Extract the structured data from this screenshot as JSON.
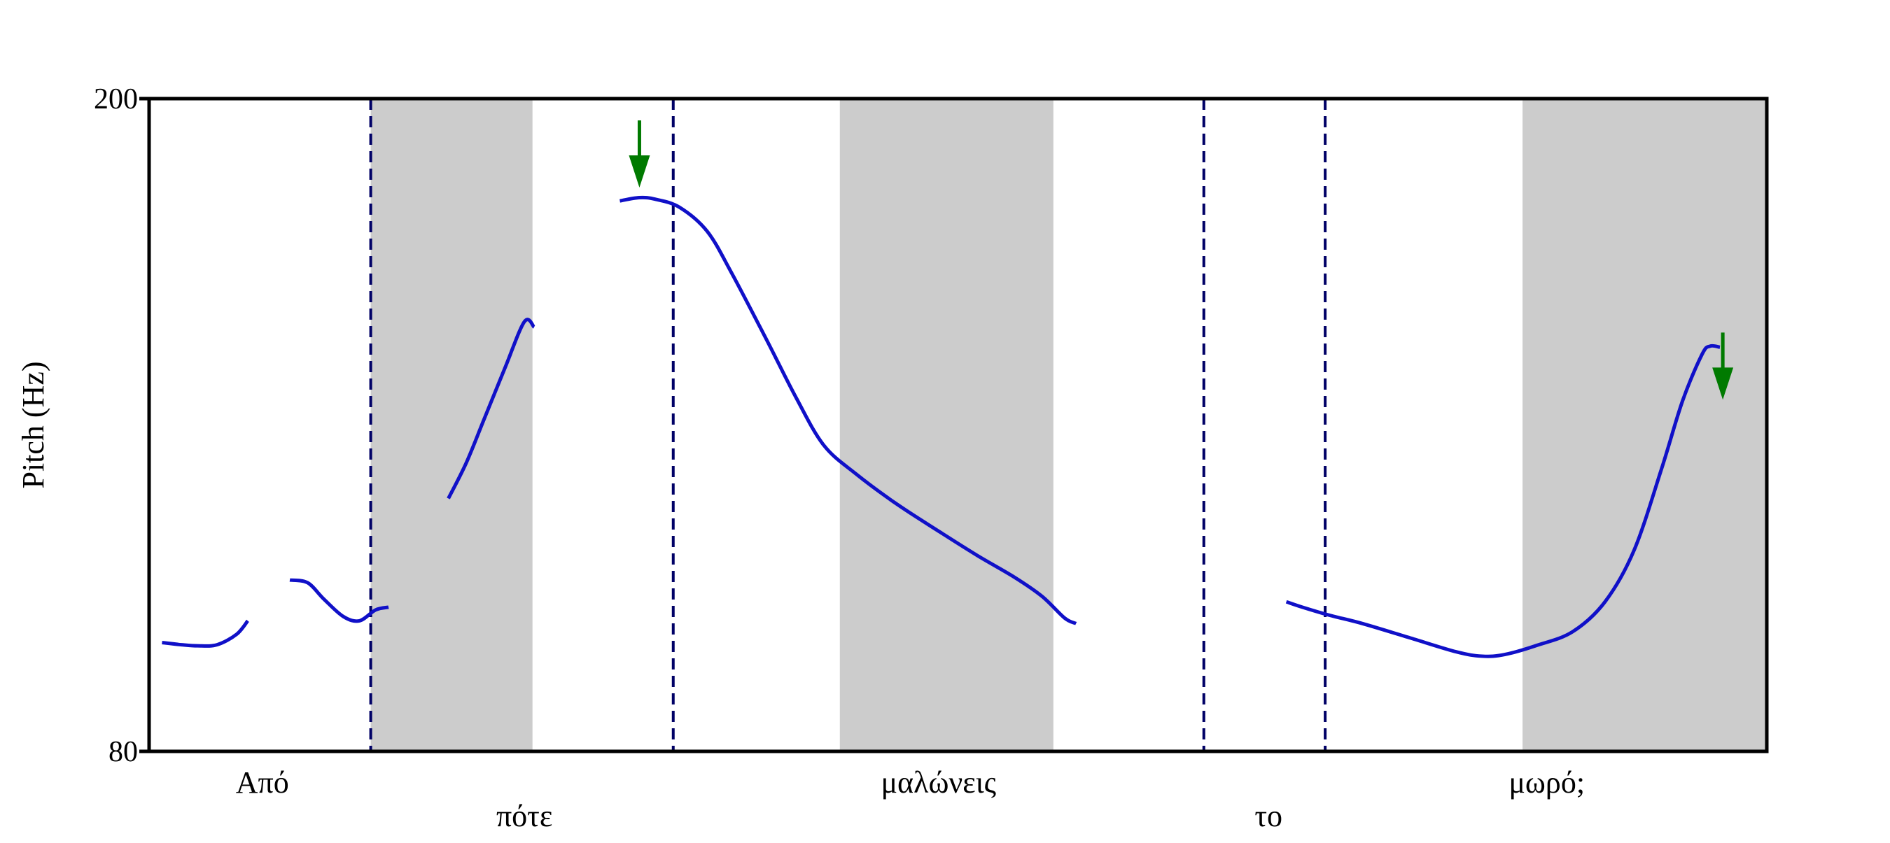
{
  "chart_data": {
    "type": "line",
    "ylabel": "Pitch (Hz)",
    "ylim": [
      80,
      200
    ],
    "yticks": [
      "200",
      "80"
    ],
    "grid": false,
    "legend": "none",
    "x_range": [
      0,
      1
    ],
    "stressed_syllable_shading": [
      {
        "x0": 0.137,
        "x1": 0.237
      },
      {
        "x0": 0.427,
        "x1": 0.559
      },
      {
        "x0": 0.849,
        "x1": 1.0
      }
    ],
    "word_boundaries": [
      0.137,
      0.324,
      0.652,
      0.727
    ],
    "words": [
      {
        "text": "Από",
        "x": 0.07,
        "row": 1
      },
      {
        "text": "πότε",
        "x": 0.232,
        "row": 2
      },
      {
        "text": "μαλώνεις",
        "x": 0.488,
        "row": 1
      },
      {
        "text": "το",
        "x": 0.692,
        "row": 2
      },
      {
        "text": "μωρό;",
        "x": 0.864,
        "row": 1
      }
    ],
    "arrows": [
      {
        "x": 0.3031,
        "y": 196
      },
      {
        "x": 0.9728,
        "y": 157
      }
    ],
    "colors": {
      "contour": "#1010c8",
      "shade": "#cccccc",
      "boundary": "#000066",
      "arrow": "#007a00",
      "axis": "#000000"
    },
    "series": [
      {
        "points": [
          [
            0.008,
            100
          ],
          [
            0.02,
            99.6
          ],
          [
            0.03,
            99.4
          ],
          [
            0.042,
            99.6
          ],
          [
            0.054,
            101.5
          ],
          [
            0.061,
            104
          ]
        ]
      },
      {
        "points": [
          [
            0.087,
            111.5
          ],
          [
            0.098,
            111
          ],
          [
            0.108,
            108
          ],
          [
            0.12,
            104.8
          ],
          [
            0.13,
            104
          ],
          [
            0.14,
            106
          ],
          [
            0.148,
            106.5
          ]
        ]
      },
      {
        "points": [
          [
            0.185,
            126.5
          ],
          [
            0.196,
            133
          ],
          [
            0.207,
            141
          ],
          [
            0.22,
            150.5
          ],
          [
            0.232,
            159
          ],
          [
            0.238,
            158
          ]
        ]
      },
      {
        "points": [
          [
            0.291,
            181.2
          ],
          [
            0.303,
            181.8
          ],
          [
            0.313,
            181.5
          ],
          [
            0.328,
            180
          ],
          [
            0.345,
            175.6
          ],
          [
            0.36,
            168
          ],
          [
            0.382,
            155.5
          ],
          [
            0.4,
            145
          ],
          [
            0.417,
            136.3
          ],
          [
            0.437,
            131
          ],
          [
            0.462,
            125.5
          ],
          [
            0.489,
            120.3
          ],
          [
            0.512,
            116
          ],
          [
            0.535,
            112
          ],
          [
            0.552,
            108.5
          ],
          [
            0.566,
            104.5
          ],
          [
            0.573,
            103.5
          ]
        ]
      },
      {
        "points": [
          [
            0.703,
            107.5
          ],
          [
            0.713,
            106.5
          ],
          [
            0.73,
            105
          ],
          [
            0.75,
            103.5
          ],
          [
            0.778,
            101
          ],
          [
            0.808,
            98.3
          ],
          [
            0.824,
            97.5
          ],
          [
            0.838,
            97.8
          ],
          [
            0.858,
            99.5
          ],
          [
            0.88,
            102
          ],
          [
            0.9,
            107.5
          ],
          [
            0.918,
            117
          ],
          [
            0.935,
            132
          ],
          [
            0.948,
            144.5
          ],
          [
            0.96,
            153
          ],
          [
            0.965,
            154.5
          ],
          [
            0.971,
            154.3
          ]
        ]
      }
    ]
  }
}
